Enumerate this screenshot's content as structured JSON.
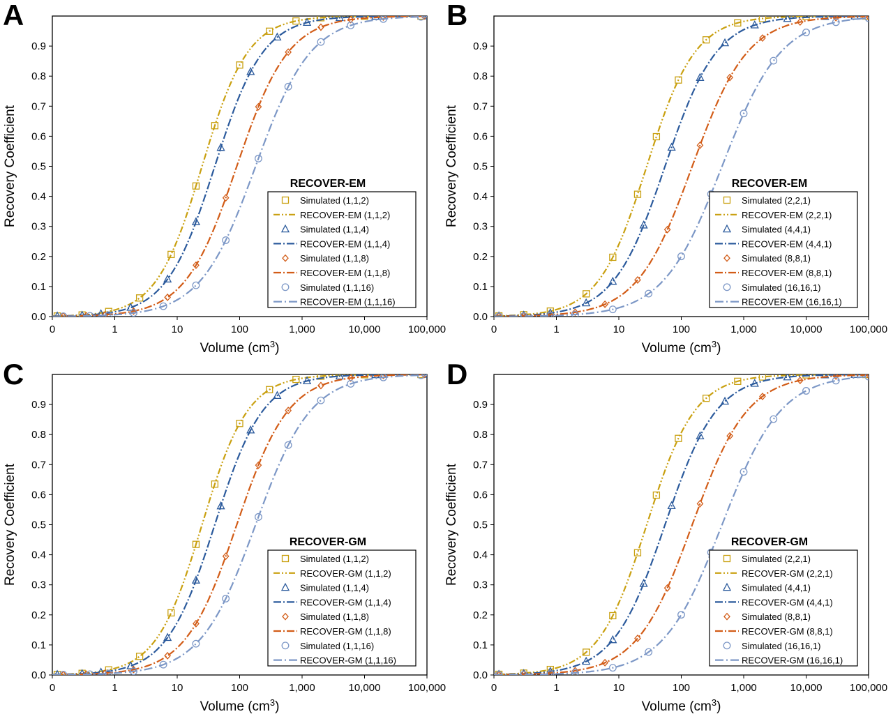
{
  "colors": {
    "yellow": "#c9a010",
    "blue": "#2b5a9c",
    "orange": "#d25c17",
    "lightblue": "#7c97c6"
  },
  "chart_data": [
    {
      "panel": "A",
      "type": "line",
      "legend_title": "RECOVER-EM",
      "xlabel": "Volume (cm",
      "xlabel_sup": "3",
      "xlabel_end": ")",
      "ylabel": "Recovery Coefficient",
      "xscale": "log",
      "xlim": [
        0.1,
        100000
      ],
      "ylim": [
        0,
        1
      ],
      "xticks": [
        "0",
        "1",
        "10",
        "100",
        "1,000",
        "10,000",
        "100,000"
      ],
      "yticks": [
        "0.0",
        "0.1",
        "0.2",
        "0.3",
        "0.4",
        "0.5",
        "0.6",
        "0.7",
        "0.8",
        "0.9"
      ],
      "legend_placement": "bottom-right",
      "grid": false,
      "series": [
        {
          "label": "Simulated (1,1,2)",
          "fit_label": "RECOVER-EM (1,1,2)",
          "color": "yellow",
          "marker": "square",
          "x50": 25,
          "slope": 1.18,
          "xs": [
            0.12,
            0.3,
            0.8,
            2.5,
            8,
            20,
            40,
            100,
            300,
            800,
            2000,
            10000,
            80000
          ]
        },
        {
          "label": "Simulated (1,1,4)",
          "fit_label": "RECOVER-EM (1,1,4)",
          "color": "blue",
          "marker": "triangle",
          "x50": 40,
          "slope": 1.12,
          "xs": [
            0.12,
            0.3,
            0.6,
            1.8,
            7,
            20,
            50,
            150,
            400,
            1200,
            4000,
            15000,
            100000
          ]
        },
        {
          "label": "Simulated (1,1,8)",
          "fit_label": "RECOVER-EM (1,1,8)",
          "color": "orange",
          "marker": "diamond",
          "x50": 90,
          "slope": 1.05,
          "xs": [
            0.15,
            0.35,
            0.7,
            2,
            7,
            20,
            60,
            200,
            600,
            2000,
            6000,
            20000,
            90000
          ]
        },
        {
          "label": "Simulated (1,1,16)",
          "fit_label": "RECOVER-EM (1,1,16)",
          "color": "lightblue",
          "marker": "circle",
          "x50": 180,
          "slope": 0.98,
          "xs": [
            0.15,
            0.4,
            0.8,
            2,
            6,
            20,
            60,
            200,
            600,
            2000,
            6000,
            20000,
            80000
          ]
        }
      ]
    },
    {
      "panel": "B",
      "type": "line",
      "legend_title": "RECOVER-EM",
      "xlabel": "Volume (cm",
      "xlabel_sup": "3",
      "xlabel_end": ")",
      "ylabel": "Recovery Coefficient",
      "xscale": "log",
      "xlim": [
        0.1,
        100000
      ],
      "ylim": [
        0,
        1
      ],
      "xticks": [
        "0",
        "1",
        "10",
        "100",
        "1,000",
        "10,000",
        "100,000"
      ],
      "yticks": [
        "0.0",
        "0.1",
        "0.2",
        "0.3",
        "0.4",
        "0.5",
        "0.6",
        "0.7",
        "0.8",
        "0.9"
      ],
      "legend_placement": "bottom-right",
      "grid": false,
      "series": [
        {
          "label": "Simulated (2,2,1)",
          "fit_label": "RECOVER-EM (2,2,1)",
          "color": "yellow",
          "marker": "square",
          "x50": 28,
          "slope": 1.12,
          "xs": [
            0.12,
            0.3,
            0.8,
            3,
            8,
            20,
            40,
            90,
            250,
            800,
            2000,
            10000,
            90000
          ]
        },
        {
          "label": "Simulated (4,4,1)",
          "fit_label": "RECOVER-EM (4,4,1)",
          "color": "blue",
          "marker": "triangle",
          "x50": 55,
          "slope": 1.05,
          "xs": [
            0.12,
            0.3,
            0.8,
            3,
            8,
            25,
            70,
            200,
            500,
            1500,
            5000,
            20000,
            60000
          ]
        },
        {
          "label": "Simulated (8,8,1)",
          "fit_label": "RECOVER-EM (8,8,1)",
          "color": "orange",
          "marker": "diamond",
          "x50": 150,
          "slope": 0.98,
          "xs": [
            0.12,
            0.3,
            0.8,
            2,
            6,
            20,
            60,
            200,
            600,
            2000,
            8000,
            30000,
            100000
          ]
        },
        {
          "label": "Simulated (16,16,1)",
          "fit_label": "RECOVER-EM (16,16,1)",
          "color": "lightblue",
          "marker": "circle",
          "x50": 450,
          "slope": 0.92,
          "xs": [
            0.12,
            0.3,
            0.8,
            2,
            8,
            30,
            100,
            300,
            1000,
            3000,
            10000,
            30000,
            100000
          ]
        }
      ]
    },
    {
      "panel": "C",
      "type": "line",
      "legend_title": "RECOVER-GM",
      "xlabel": "Volume (cm",
      "xlabel_sup": "3",
      "xlabel_end": ")",
      "ylabel": "Recovery Coefficient",
      "xscale": "log",
      "xlim": [
        0.1,
        100000
      ],
      "ylim": [
        0,
        1
      ],
      "xticks": [
        "0",
        "1",
        "10",
        "100",
        "1,000",
        "10,000",
        "100,000"
      ],
      "yticks": [
        "0.0",
        "0.1",
        "0.2",
        "0.3",
        "0.4",
        "0.5",
        "0.6",
        "0.7",
        "0.8",
        "0.9"
      ],
      "legend_placement": "bottom-right",
      "grid": false,
      "series": [
        {
          "label": "Simulated (1,1,2)",
          "fit_label": "RECOVER-GM (1,1,2)",
          "color": "yellow",
          "marker": "square",
          "x50": 25,
          "slope": 1.18,
          "xs": [
            0.12,
            0.3,
            0.8,
            2.5,
            8,
            20,
            40,
            100,
            300,
            800,
            2000,
            10000,
            80000
          ]
        },
        {
          "label": "Simulated (1,1,4)",
          "fit_label": "RECOVER-GM (1,1,4)",
          "color": "blue",
          "marker": "triangle",
          "x50": 40,
          "slope": 1.12,
          "xs": [
            0.12,
            0.3,
            0.6,
            1.8,
            7,
            20,
            50,
            150,
            400,
            1200,
            4000,
            15000,
            100000
          ]
        },
        {
          "label": "Simulated (1,1,8)",
          "fit_label": "RECOVER-GM (1,1,8)",
          "color": "orange",
          "marker": "diamond",
          "x50": 90,
          "slope": 1.05,
          "xs": [
            0.15,
            0.35,
            0.7,
            2,
            7,
            20,
            60,
            200,
            600,
            2000,
            6000,
            20000,
            90000
          ]
        },
        {
          "label": "Simulated (1,1,16)",
          "fit_label": "RECOVER-GM (1,1,16)",
          "color": "lightblue",
          "marker": "circle",
          "x50": 180,
          "slope": 0.98,
          "xs": [
            0.15,
            0.4,
            0.8,
            2,
            6,
            20,
            60,
            200,
            600,
            2000,
            6000,
            20000,
            80000
          ]
        }
      ]
    },
    {
      "panel": "D",
      "type": "line",
      "legend_title": "RECOVER-GM",
      "xlabel": "Volume (cm",
      "xlabel_sup": "3",
      "xlabel_end": ")",
      "ylabel": "Recovery Coefficient",
      "xscale": "log",
      "xlim": [
        0.1,
        100000
      ],
      "ylim": [
        0,
        1
      ],
      "xticks": [
        "0",
        "1",
        "10",
        "100",
        "1,000",
        "10,000",
        "100,000"
      ],
      "yticks": [
        "0.0",
        "0.1",
        "0.2",
        "0.3",
        "0.4",
        "0.5",
        "0.6",
        "0.7",
        "0.8",
        "0.9"
      ],
      "legend_placement": "bottom-right",
      "grid": false,
      "series": [
        {
          "label": "Simulated (2,2,1)",
          "fit_label": "RECOVER-GM (2,2,1)",
          "color": "yellow",
          "marker": "square",
          "x50": 28,
          "slope": 1.12,
          "xs": [
            0.12,
            0.3,
            0.8,
            3,
            8,
            20,
            40,
            90,
            250,
            800,
            2000,
            10000,
            90000
          ]
        },
        {
          "label": "Simulated (4,4,1)",
          "fit_label": "RECOVER-GM (4,4,1)",
          "color": "blue",
          "marker": "triangle",
          "x50": 55,
          "slope": 1.05,
          "xs": [
            0.12,
            0.3,
            0.8,
            3,
            8,
            25,
            70,
            200,
            500,
            1500,
            5000,
            20000,
            60000
          ]
        },
        {
          "label": "Simulated (8,8,1)",
          "fit_label": "RECOVER-GM (8,8,1)",
          "color": "orange",
          "marker": "diamond",
          "x50": 150,
          "slope": 0.98,
          "xs": [
            0.12,
            0.3,
            0.8,
            2,
            6,
            20,
            60,
            200,
            600,
            2000,
            8000,
            30000,
            100000
          ]
        },
        {
          "label": "Simulated (16,16,1)",
          "fit_label": "RECOVER-GM (16,16,1)",
          "color": "lightblue",
          "marker": "circle",
          "x50": 450,
          "slope": 0.92,
          "xs": [
            0.12,
            0.3,
            0.8,
            2,
            8,
            30,
            100,
            300,
            1000,
            3000,
            10000,
            30000,
            100000
          ]
        }
      ]
    }
  ]
}
